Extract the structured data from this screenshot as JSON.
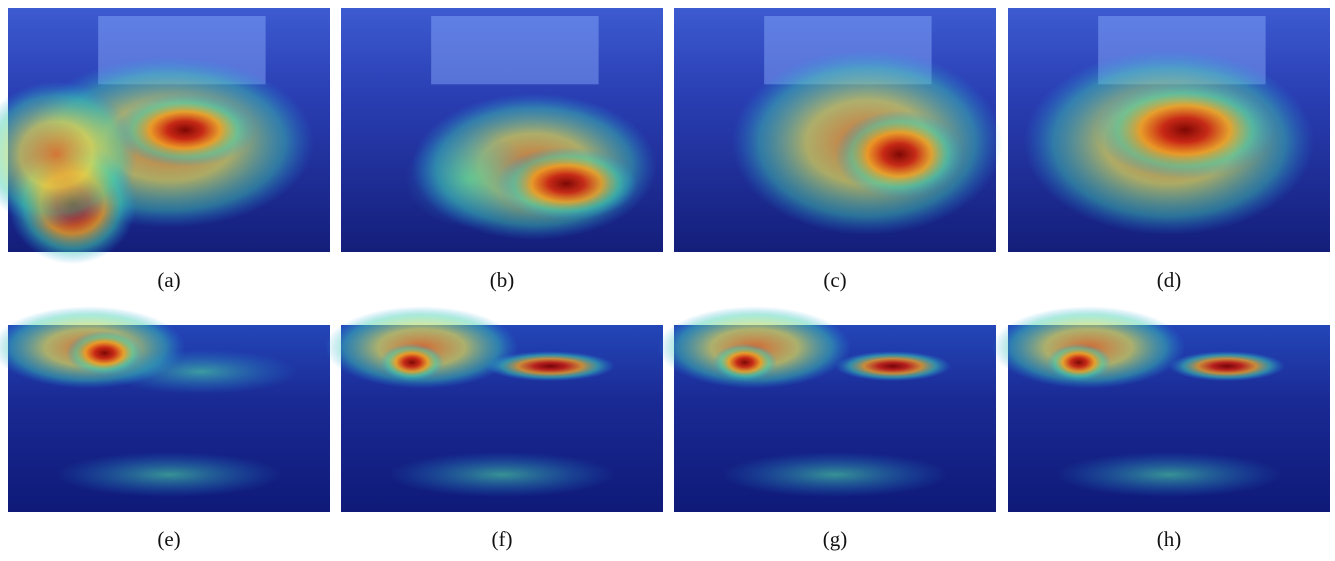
{
  "panels": [
    {
      "caption": "(a)"
    },
    {
      "caption": "(b)"
    },
    {
      "caption": "(c)"
    },
    {
      "caption": "(d)"
    },
    {
      "caption": "(e)"
    },
    {
      "caption": "(f)"
    },
    {
      "caption": "(g)"
    },
    {
      "caption": "(h)"
    }
  ]
}
